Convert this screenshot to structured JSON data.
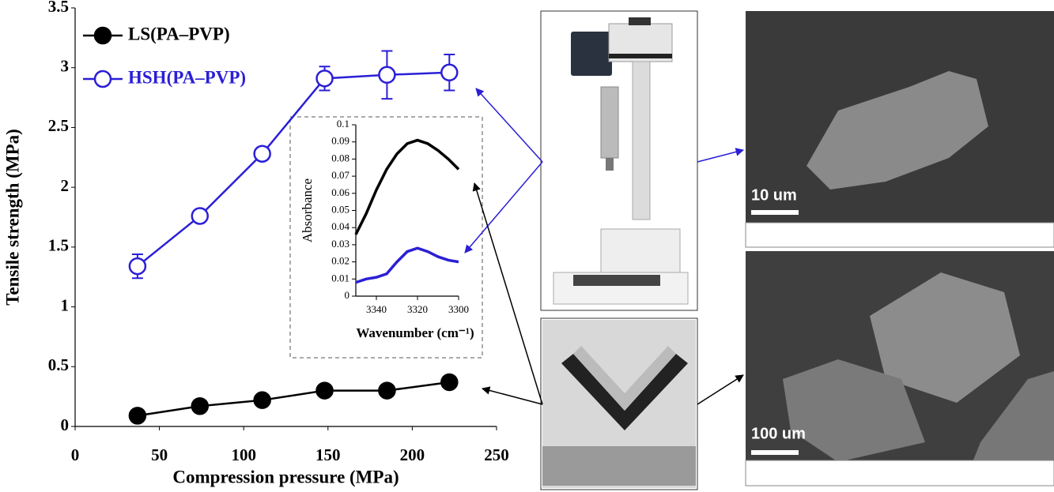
{
  "chart_data": [
    {
      "type": "line",
      "xlabel": "Compression pressure (MPa)",
      "ylabel": "Tensile strength (MPa)",
      "xlim": [
        0,
        250
      ],
      "xticks": [
        0,
        50,
        100,
        150,
        200,
        250
      ],
      "ylim": [
        0,
        3.5
      ],
      "yticks": [
        0,
        0.5,
        1,
        1.5,
        2,
        2.5,
        3,
        3.5
      ],
      "x": [
        37,
        74,
        111,
        148,
        185,
        222
      ],
      "legend": "upper left",
      "series": [
        {
          "name": "LS(PA–PVP)",
          "color": "#000000",
          "marker": "filled",
          "values": [
            0.09,
            0.17,
            0.22,
            0.3,
            0.3,
            0.37
          ]
        },
        {
          "name": "HSH(PA–PVP)",
          "color": "#2b1fd6",
          "marker": "open",
          "values": [
            1.34,
            1.76,
            2.28,
            2.91,
            2.94,
            2.96
          ],
          "errors": [
            0.1,
            0.03,
            0.03,
            0.1,
            0.2,
            0.15
          ]
        }
      ]
    },
    {
      "type": "line",
      "xlabel": "Wavenumber (cm⁻¹)",
      "ylabel": "Absorbance",
      "xlim": [
        3350,
        3300
      ],
      "xticks": [
        3340,
        3320,
        3300
      ],
      "ylim": [
        0,
        0.1
      ],
      "yticks": [
        0,
        0.01,
        0.02,
        0.03,
        0.04,
        0.05,
        0.06,
        0.07,
        0.08,
        0.09,
        0.1
      ],
      "x": [
        3350,
        3345,
        3340,
        3335,
        3330,
        3325,
        3320,
        3315,
        3310,
        3305,
        3300
      ],
      "series": [
        {
          "color": "#000000",
          "values": [
            0.036,
            0.048,
            0.062,
            0.074,
            0.083,
            0.089,
            0.091,
            0.089,
            0.085,
            0.08,
            0.074
          ]
        },
        {
          "color": "#2b1fd6",
          "values": [
            0.008,
            0.01,
            0.011,
            0.013,
            0.02,
            0.026,
            0.028,
            0.026,
            0.023,
            0.021,
            0.02
          ]
        }
      ]
    }
  ],
  "images": {
    "sem_top_scale": "10 um",
    "sem_bottom_scale": "100 um"
  }
}
